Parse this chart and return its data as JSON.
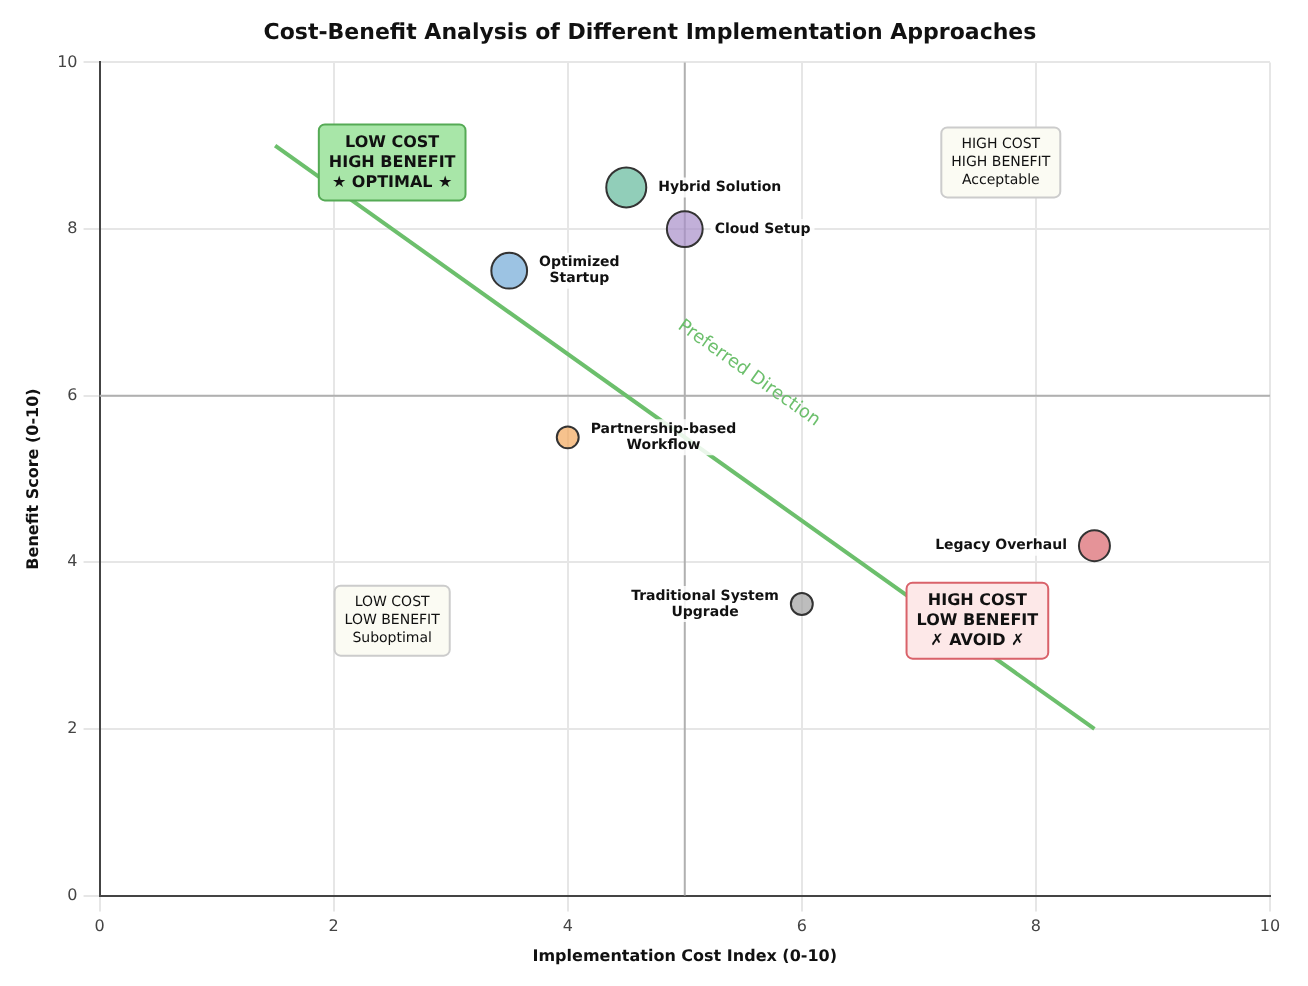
{
  "chart_data": {
    "type": "bubble",
    "title": "Cost-Benefit Analysis of Different Implementation Approaches",
    "xlabel": "Implementation Cost Index (0-10)",
    "ylabel": "Benefit Score (0-10)",
    "xlim": [
      0,
      10
    ],
    "ylim": [
      0,
      10
    ],
    "xticks": [
      0,
      2,
      4,
      6,
      8,
      10
    ],
    "yticks": [
      0,
      2,
      4,
      6,
      8,
      10
    ],
    "grid": true,
    "legend": false,
    "series": [
      {
        "name": "Hybrid Solution",
        "color": "#5fb89a",
        "x": [
          4.5
        ],
        "values": [
          8.5
        ],
        "sizes": [
          1
        ]
      },
      {
        "name": "Cloud Setup",
        "color": "#a68cc8",
        "x": [
          5.0
        ],
        "values": [
          8.0
        ],
        "sizes": [
          0.8
        ]
      },
      {
        "name": "Optimized Startup",
        "color": "#6fa8d6",
        "x": [
          3.5
        ],
        "values": [
          7.5
        ],
        "sizes": [
          0.8
        ]
      },
      {
        "name": "Partnership-based Workflow",
        "color": "#f2a65a",
        "x": [
          4.0
        ],
        "values": [
          5.5
        ],
        "sizes": [
          0.3
        ]
      },
      {
        "name": "Legacy Overhaul",
        "color": "#d9626a",
        "x": [
          8.5
        ],
        "values": [
          4.2
        ],
        "sizes": [
          0.6
        ]
      },
      {
        "name": "Traditional System Upgrade",
        "color": "#a0a0a0",
        "x": [
          6.0
        ],
        "values": [
          3.5
        ],
        "sizes": [
          0.3
        ]
      },
      {
        "name": "Preferred Direction",
        "type": "line",
        "color": "#6cbf6c",
        "x": [
          1.5,
          8.5
        ],
        "values": [
          9,
          2
        ]
      }
    ],
    "ref_lines": [
      {
        "axis": "x",
        "value": 5,
        "color": "#b0b0b0"
      },
      {
        "axis": "y",
        "value": 6,
        "color": "#b0b0b0"
      }
    ],
    "annotations": [
      "LOW COST\nHIGH BENEFIT\n★ OPTIMAL ★",
      "HIGH COST\nHIGH BENEFIT\nAcceptable",
      "LOW COST\nLOW BENEFIT\nSuboptimal",
      "HIGH COST\nLOW BENEFIT\n✗ AVOID ✗"
    ]
  }
}
